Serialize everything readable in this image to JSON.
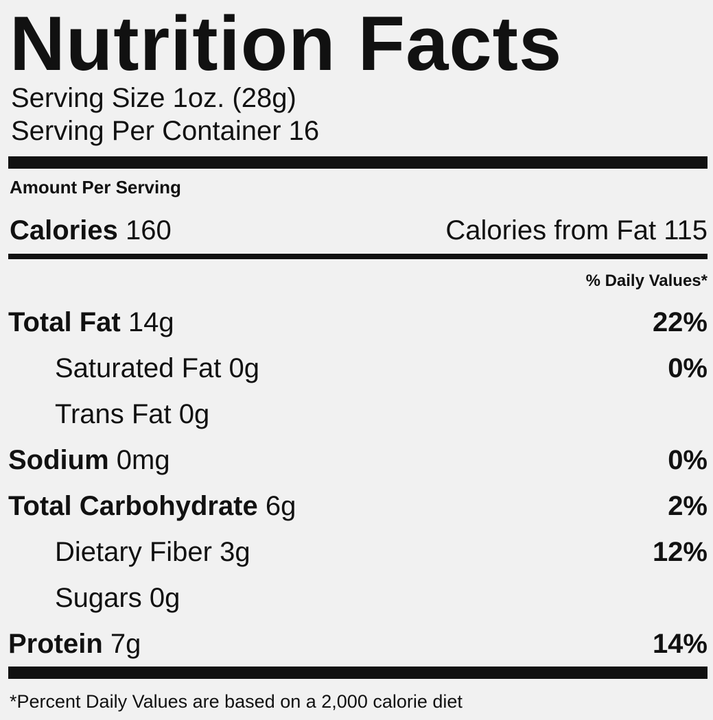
{
  "title": "Nutrition Facts",
  "serving_size": "Serving Size 1oz. (28g)",
  "servings_per_container": "Serving Per Container 16",
  "amount_per_serving": "Amount Per Serving",
  "calories": {
    "label": "Calories",
    "value": "160",
    "from_fat": "Calories from Fat 115"
  },
  "daily_values_header": "% Daily Values*",
  "rows": [
    {
      "name": "Total Fat",
      "amount": "14g",
      "dv": "22%",
      "bold": true,
      "indent": false
    },
    {
      "name": "Saturated Fat",
      "amount": "0g",
      "dv": "0%",
      "bold": false,
      "indent": true
    },
    {
      "name": "Trans Fat",
      "amount": "0g",
      "bold": false,
      "indent": true
    },
    {
      "name": "Sodium",
      "amount": "0mg",
      "dv": "0%",
      "bold": true,
      "indent": false
    },
    {
      "name": "Total Carbohydrate",
      "amount": "6g",
      "dv": "2%",
      "bold": true,
      "indent": false
    },
    {
      "name": "Dietary Fiber",
      "amount": "3g",
      "dv": "12%",
      "bold": false,
      "indent": true
    },
    {
      "name": "Sugars",
      "amount": "0g",
      "bold": false,
      "indent": true
    },
    {
      "name": "Protein",
      "amount": "7g",
      "dv": "14%",
      "bold": true,
      "indent": false
    }
  ],
  "footnote": "*Percent Daily Values are based on a 2,000 calorie diet"
}
